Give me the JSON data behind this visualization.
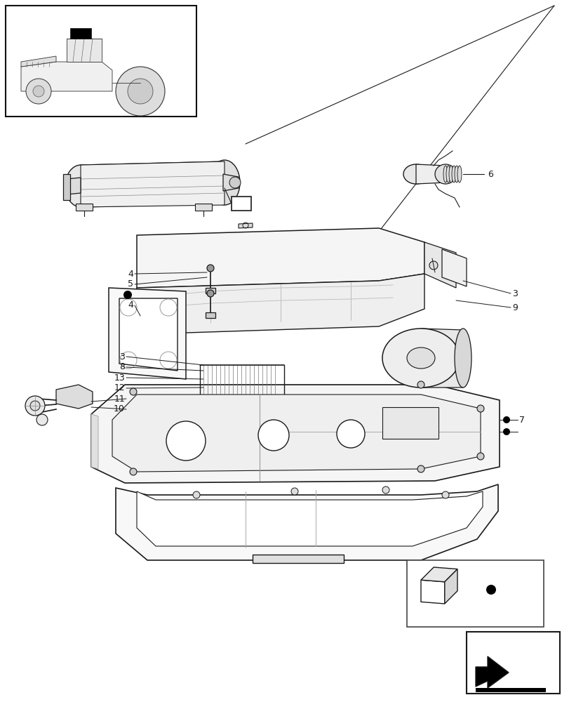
{
  "bg_color": "#ffffff",
  "line_color": "#1a1a1a",
  "fig_width": 8.12,
  "fig_height": 10.0,
  "dpi": 100
}
